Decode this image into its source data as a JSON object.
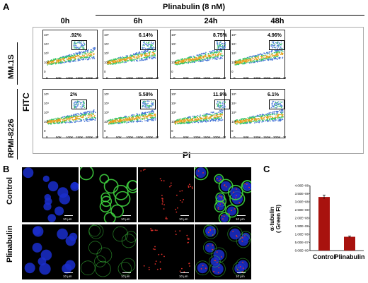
{
  "panels": {
    "a": {
      "letter": "A",
      "treatment": "Plinabulin (8 nM)",
      "timepoints": [
        "0h",
        "6h",
        "24h",
        "48h"
      ],
      "rows": [
        {
          "label": "MM.1S",
          "percents": [
            ".92%",
            "6.14%",
            "8.75%",
            "4.96%"
          ]
        },
        {
          "label": "RPMI-8226",
          "percents": [
            "2%",
            "5.58%",
            "11.9%",
            "6.1%"
          ]
        }
      ],
      "ylabel": "FITC",
      "xlabel": "PI",
      "xticks": [
        "0",
        "50K",
        "100K",
        "150K",
        "200K",
        "250K"
      ],
      "yticks": [
        "10⁵",
        "10⁴",
        "10³",
        "10²",
        "0"
      ]
    },
    "b": {
      "letter": "B",
      "rows": [
        {
          "label": "Control"
        },
        {
          "label": "Plinabulin"
        }
      ],
      "scale": "10 μm",
      "colors": {
        "blue": "#1a2ecc",
        "green": "#3fd13f",
        "red": "#e0302a"
      }
    },
    "c": {
      "letter": "C",
      "ylabel_line1": "α-tubulin",
      "ylabel_line2": "( Green FI)",
      "yticks": [
        "4.00E+08",
        "3.50E+08",
        "3.00E+08",
        "2.50E+08",
        "2.00E+08",
        "1.50E+08",
        "1.00E+08",
        "5.00E+07",
        "0.00E+00"
      ]
    }
  },
  "chart_data": {
    "type": "bar",
    "categories": [
      "Control",
      "Plinabulin"
    ],
    "values": [
      330000000,
      85000000
    ],
    "errors": [
      12000000,
      5000000
    ],
    "ylabel": "α-tubulin ( Green FI)",
    "ylim": [
      0,
      400000000
    ],
    "color": "#a8120e"
  }
}
